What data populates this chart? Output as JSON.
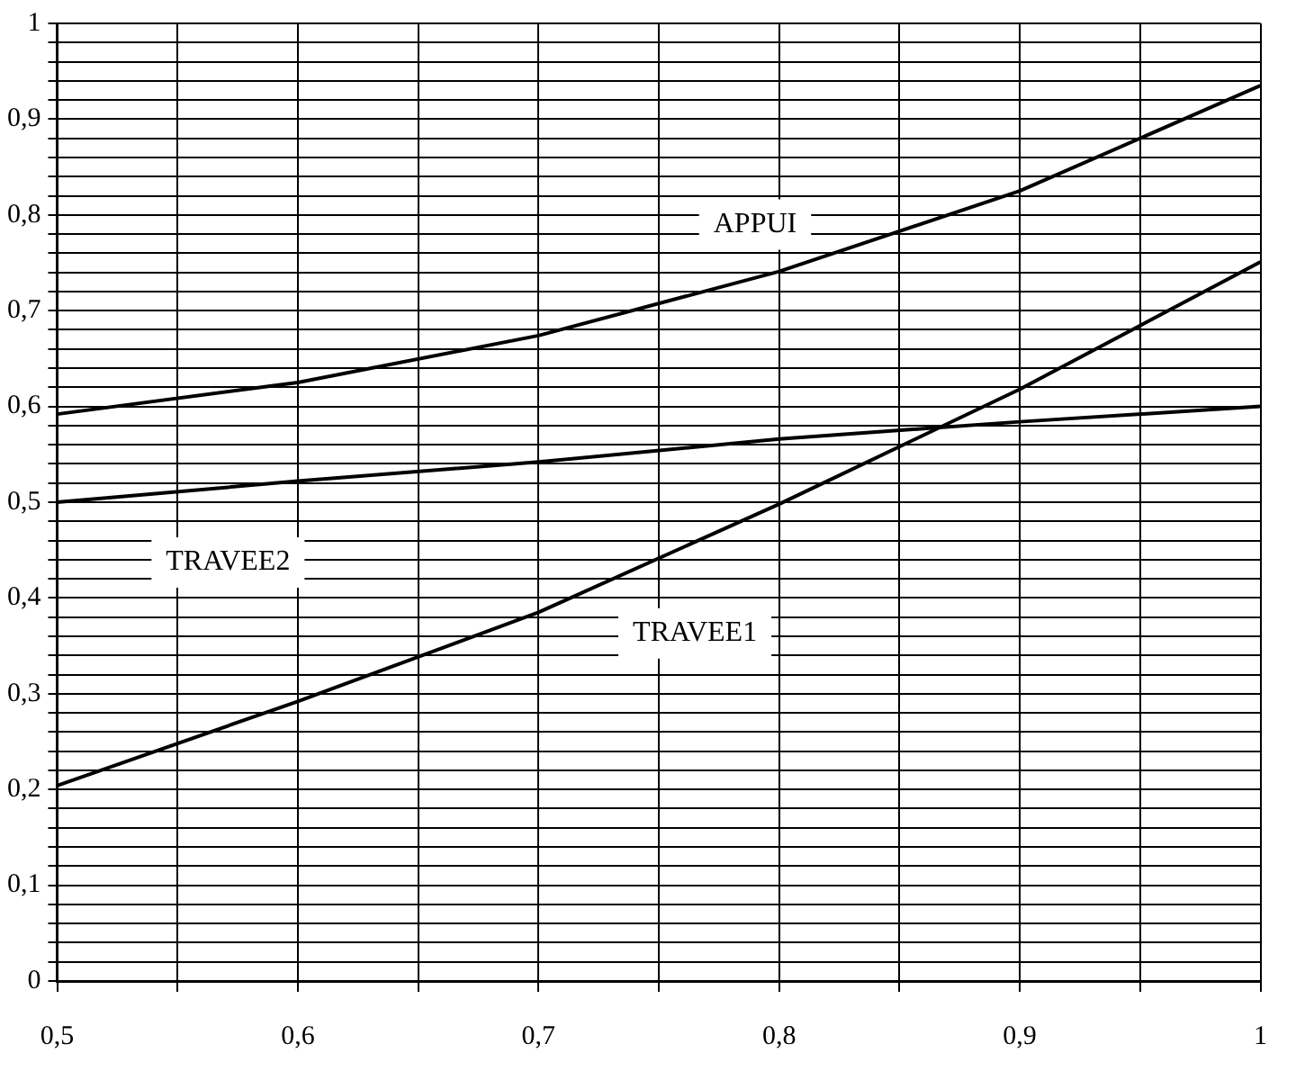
{
  "chart_data": {
    "type": "line",
    "x": [
      0.5,
      0.6,
      0.7,
      0.8,
      0.9,
      1
    ],
    "series": [
      {
        "name": "APPUI",
        "color": "#000000",
        "values": [
          0.592,
          0.625,
          0.674,
          0.741,
          0.825,
          0.935
        ]
      },
      {
        "name": "TRAVEE2",
        "color": "#000000",
        "values": [
          0.5,
          0.522,
          0.542,
          0.566,
          0.584,
          0.6
        ]
      },
      {
        "name": "TRAVEE1",
        "color": "#000000",
        "values": [
          0.204,
          0.292,
          0.385,
          0.498,
          0.618,
          0.751
        ]
      }
    ],
    "xlim": [
      0.5,
      1
    ],
    "xticks": [
      {
        "value": 0.5,
        "label": "0,5"
      },
      {
        "value": 0.55,
        "label": null
      },
      {
        "value": 0.6,
        "label": "0,6"
      },
      {
        "value": 0.65,
        "label": null
      },
      {
        "value": 0.7,
        "label": "0,7"
      },
      {
        "value": 0.75,
        "label": null
      },
      {
        "value": 0.8,
        "label": "0,8"
      },
      {
        "value": 0.85,
        "label": null
      },
      {
        "value": 0.9,
        "label": "0,9"
      },
      {
        "value": 0.95,
        "label": null
      },
      {
        "value": 1,
        "label": "1"
      }
    ],
    "ylim": [
      0,
      1
    ],
    "yticks": [
      0,
      {
        "value": 0.02,
        "label": null
      },
      {
        "value": 0.04,
        "label": null
      },
      {
        "value": 0.06,
        "label": null
      },
      {
        "value": 0.08,
        "label": null
      },
      {
        "value": 0.1,
        "label": "0,1"
      },
      {
        "value": 0.12,
        "label": null
      },
      {
        "value": 0.14,
        "label": null
      },
      {
        "value": 0.16,
        "label": null
      },
      {
        "value": 0.18,
        "label": null
      },
      {
        "value": 0.2,
        "label": "0,2"
      },
      {
        "value": 0.22,
        "label": null
      },
      {
        "value": 0.24,
        "label": null
      },
      {
        "value": 0.26,
        "label": null
      },
      {
        "value": 0.28,
        "label": null
      },
      {
        "value": 0.3,
        "label": "0,3"
      },
      {
        "value": 0.32,
        "label": null
      },
      {
        "value": 0.34,
        "label": null
      },
      {
        "value": 0.36,
        "label": null
      },
      {
        "value": 0.38,
        "label": null
      },
      {
        "value": 0.4,
        "label": "0,4"
      },
      {
        "value": 0.42,
        "label": null
      },
      {
        "value": 0.44,
        "label": null
      },
      {
        "value": 0.46,
        "label": null
      },
      {
        "value": 0.48,
        "label": null
      },
      {
        "value": 0.5,
        "label": "0,5"
      },
      {
        "value": 0.52,
        "label": null
      },
      {
        "value": 0.54,
        "label": null
      },
      {
        "value": 0.56,
        "label": null
      },
      {
        "value": 0.58,
        "label": null
      },
      {
        "value": 0.6,
        "label": "0,6"
      },
      {
        "value": 0.62,
        "label": null
      },
      {
        "value": 0.64,
        "label": null
      },
      {
        "value": 0.66,
        "label": null
      },
      {
        "value": 0.68,
        "label": null
      },
      {
        "value": 0.7,
        "label": "0,7"
      },
      {
        "value": 0.72,
        "label": null
      },
      {
        "value": 0.74,
        "label": null
      },
      {
        "value": 0.76,
        "label": null
      },
      {
        "value": 0.78,
        "label": null
      },
      {
        "value": 0.8,
        "label": "0,8"
      },
      {
        "value": 0.82,
        "label": null
      },
      {
        "value": 0.84,
        "label": null
      },
      {
        "value": 0.86,
        "label": null
      },
      {
        "value": 0.88,
        "label": null
      },
      {
        "value": 0.9,
        "label": "0,9"
      },
      {
        "value": 0.92,
        "label": null
      },
      {
        "value": 0.94,
        "label": null
      },
      {
        "value": 0.96,
        "label": null
      },
      {
        "value": 0.98,
        "label": null
      },
      1
    ],
    "grid": true,
    "legend": false,
    "marker": "none",
    "line_style": "solid"
  }
}
